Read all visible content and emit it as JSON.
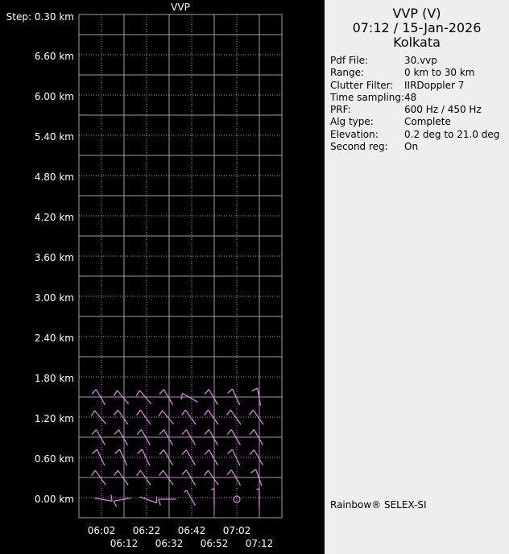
{
  "chart_data": {
    "type": "wind-barb",
    "title": "VVP",
    "step_label": "Step: 0.30 km",
    "y_tick_labels": [
      "6.60 km",
      "6.00 km",
      "5.40 km",
      "4.80 km",
      "4.20 km",
      "3.60 km",
      "3.00 km",
      "2.40 km",
      "1.80 km",
      "1.20 km",
      "0.60 km",
      "0.00 km"
    ],
    "y_ticks": [
      6.6,
      6.0,
      5.4,
      4.8,
      4.2,
      3.6,
      3.0,
      2.4,
      1.8,
      1.2,
      0.6,
      0.0
    ],
    "ylim": [
      -0.15,
      7.05
    ],
    "x_tick_labels": [
      "06:02",
      "06:12",
      "06:22",
      "06:32",
      "06:42",
      "06:52",
      "07:02",
      "07:12"
    ],
    "heights_km": [
      0.0,
      0.3,
      0.6,
      0.9,
      1.2,
      1.5
    ],
    "barb_color": "#e080e8",
    "grid_color": "#a0a0a0",
    "barbs_direction_deg": [
      [
        100,
        260,
        110,
        270,
        330,
        0,
        null,
        0
      ],
      [
        325,
        325,
        325,
        325,
        330,
        325,
        330,
        340
      ],
      [
        335,
        335,
        335,
        330,
        330,
        330,
        335,
        330
      ],
      [
        330,
        330,
        330,
        330,
        330,
        330,
        330,
        330
      ],
      [
        320,
        325,
        325,
        320,
        325,
        325,
        325,
        325
      ],
      [
        330,
        320,
        320,
        330,
        300,
        330,
        335,
        350
      ]
    ],
    "barbs_speed_kt": [
      [
        10,
        10,
        10,
        10,
        5,
        5,
        0,
        5
      ],
      [
        10,
        10,
        10,
        10,
        10,
        10,
        10,
        10
      ],
      [
        10,
        10,
        10,
        10,
        10,
        10,
        10,
        10
      ],
      [
        10,
        10,
        10,
        10,
        10,
        10,
        10,
        10
      ],
      [
        10,
        10,
        10,
        10,
        10,
        10,
        10,
        10
      ],
      [
        10,
        10,
        10,
        10,
        10,
        10,
        10,
        10
      ]
    ]
  },
  "panel": {
    "title": "VVP (V)",
    "datetime": "07:12 / 15-Jan-2026",
    "site": "Kolkata",
    "info": [
      {
        "k": "Pdf File:",
        "v": "30.vvp"
      },
      {
        "k": "Range:",
        "v": "0 km to 30 km"
      },
      {
        "k": "Clutter Filter:",
        "v": "IIRDoppler 7"
      },
      {
        "k": "Time sampling:",
        "v": "48"
      },
      {
        "k": "PRF:",
        "v": "600 Hz / 450 Hz"
      },
      {
        "k": "Alg type:",
        "v": "Complete"
      },
      {
        "k": "Elevation:",
        "v": "0.2 deg to 21.0 deg"
      },
      {
        "k": "Second reg:",
        "v": "On"
      }
    ],
    "footer": "Rainbow® SELEX-SI"
  }
}
